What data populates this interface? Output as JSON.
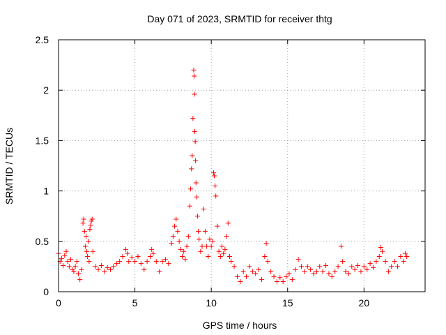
{
  "chart_data": {
    "type": "scatter",
    "title": "Day 071 of 2023, SRMTID for receiver thtg",
    "xlabel": "GPS time / hours",
    "ylabel": "SRMTID / TECUs",
    "xlim": [
      0,
      24
    ],
    "ylim": [
      0,
      2.5
    ],
    "xticks": [
      0,
      5,
      10,
      15,
      20
    ],
    "yticks": [
      0,
      0.5,
      1,
      1.5,
      2,
      2.5
    ],
    "xtick_labels": [
      "0",
      "5",
      "10",
      "15",
      "20"
    ],
    "ytick_labels": [
      "0",
      "0.5",
      "1",
      "1.5",
      "2",
      "2.5"
    ],
    "grid": true,
    "marker": "+",
    "series": [
      {
        "name": "SRMTID",
        "color": "#ff0000",
        "points": [
          [
            0.0,
            0.38
          ],
          [
            0.1,
            0.3
          ],
          [
            0.2,
            0.33
          ],
          [
            0.3,
            0.26
          ],
          [
            0.4,
            0.36
          ],
          [
            0.5,
            0.4
          ],
          [
            0.6,
            0.3
          ],
          [
            0.7,
            0.25
          ],
          [
            0.8,
            0.32
          ],
          [
            0.9,
            0.22
          ],
          [
            1.0,
            0.2
          ],
          [
            1.1,
            0.25
          ],
          [
            1.2,
            0.3
          ],
          [
            1.3,
            0.18
          ],
          [
            1.4,
            0.12
          ],
          [
            1.5,
            0.22
          ],
          [
            1.6,
            0.68
          ],
          [
            1.65,
            0.72
          ],
          [
            1.7,
            0.6
          ],
          [
            1.75,
            0.45
          ],
          [
            1.8,
            0.55
          ],
          [
            1.85,
            0.4
          ],
          [
            1.9,
            0.35
          ],
          [
            1.95,
            0.5
          ],
          [
            2.0,
            0.3
          ],
          [
            2.05,
            0.62
          ],
          [
            2.1,
            0.66
          ],
          [
            2.15,
            0.7
          ],
          [
            2.2,
            0.72
          ],
          [
            2.25,
            0.4
          ],
          [
            2.4,
            0.25
          ],
          [
            2.6,
            0.22
          ],
          [
            2.8,
            0.26
          ],
          [
            3.0,
            0.2
          ],
          [
            3.2,
            0.24
          ],
          [
            3.4,
            0.22
          ],
          [
            3.6,
            0.25
          ],
          [
            3.8,
            0.28
          ],
          [
            4.0,
            0.3
          ],
          [
            4.2,
            0.35
          ],
          [
            4.4,
            0.42
          ],
          [
            4.5,
            0.38
          ],
          [
            4.6,
            0.3
          ],
          [
            4.8,
            0.34
          ],
          [
            5.0,
            0.3
          ],
          [
            5.2,
            0.35
          ],
          [
            5.4,
            0.28
          ],
          [
            5.6,
            0.22
          ],
          [
            5.8,
            0.3
          ],
          [
            6.0,
            0.35
          ],
          [
            6.1,
            0.42
          ],
          [
            6.2,
            0.38
          ],
          [
            6.4,
            0.3
          ],
          [
            6.6,
            0.2
          ],
          [
            6.8,
            0.3
          ],
          [
            7.0,
            0.32
          ],
          [
            7.2,
            0.28
          ],
          [
            7.4,
            0.48
          ],
          [
            7.5,
            0.55
          ],
          [
            7.6,
            0.65
          ],
          [
            7.7,
            0.72
          ],
          [
            7.8,
            0.6
          ],
          [
            7.9,
            0.5
          ],
          [
            8.0,
            0.42
          ],
          [
            8.1,
            0.35
          ],
          [
            8.2,
            0.4
          ],
          [
            8.3,
            0.32
          ],
          [
            8.4,
            0.45
          ],
          [
            8.5,
            0.55
          ],
          [
            8.6,
            0.85
          ],
          [
            8.65,
            1.02
          ],
          [
            8.7,
            1.22
          ],
          [
            8.75,
            1.35
          ],
          [
            8.8,
            1.72
          ],
          [
            8.85,
            2.2
          ],
          [
            8.88,
            2.14
          ],
          [
            8.9,
            1.96
          ],
          [
            8.92,
            1.59
          ],
          [
            8.95,
            1.49
          ],
          [
            8.97,
            1.3
          ],
          [
            9.0,
            1.08
          ],
          [
            9.05,
            0.94
          ],
          [
            9.1,
            0.75
          ],
          [
            9.15,
            0.6
          ],
          [
            9.2,
            0.52
          ],
          [
            9.3,
            0.4
          ],
          [
            9.4,
            0.45
          ],
          [
            9.5,
            0.82
          ],
          [
            9.6,
            0.6
          ],
          [
            9.7,
            0.45
          ],
          [
            9.8,
            0.35
          ],
          [
            9.9,
            0.52
          ],
          [
            10.0,
            0.45
          ],
          [
            10.1,
            0.5
          ],
          [
            10.15,
            1.18
          ],
          [
            10.2,
            1.15
          ],
          [
            10.25,
            1.05
          ],
          [
            10.3,
            0.95
          ],
          [
            10.4,
            0.65
          ],
          [
            10.5,
            0.4
          ],
          [
            10.6,
            0.35
          ],
          [
            10.7,
            0.45
          ],
          [
            10.8,
            0.38
          ],
          [
            10.9,
            0.42
          ],
          [
            11.0,
            0.55
          ],
          [
            11.1,
            0.68
          ],
          [
            11.2,
            0.35
          ],
          [
            11.3,
            0.3
          ],
          [
            11.5,
            0.25
          ],
          [
            11.7,
            0.15
          ],
          [
            11.9,
            0.1
          ],
          [
            12.1,
            0.2
          ],
          [
            12.3,
            0.15
          ],
          [
            12.5,
            0.25
          ],
          [
            12.7,
            0.2
          ],
          [
            12.9,
            0.18
          ],
          [
            13.1,
            0.22
          ],
          [
            13.3,
            0.12
          ],
          [
            13.5,
            0.35
          ],
          [
            13.6,
            0.48
          ],
          [
            13.7,
            0.3
          ],
          [
            13.9,
            0.2
          ],
          [
            14.1,
            0.15
          ],
          [
            14.3,
            0.1
          ],
          [
            14.5,
            0.14
          ],
          [
            14.7,
            0.1
          ],
          [
            14.9,
            0.15
          ],
          [
            15.1,
            0.18
          ],
          [
            15.3,
            0.12
          ],
          [
            15.5,
            0.22
          ],
          [
            15.7,
            0.32
          ],
          [
            15.9,
            0.25
          ],
          [
            16.1,
            0.2
          ],
          [
            16.3,
            0.25
          ],
          [
            16.5,
            0.22
          ],
          [
            16.7,
            0.18
          ],
          [
            16.9,
            0.2
          ],
          [
            17.1,
            0.25
          ],
          [
            17.3,
            0.2
          ],
          [
            17.5,
            0.26
          ],
          [
            17.7,
            0.18
          ],
          [
            17.9,
            0.15
          ],
          [
            18.1,
            0.2
          ],
          [
            18.3,
            0.25
          ],
          [
            18.5,
            0.45
          ],
          [
            18.6,
            0.3
          ],
          [
            18.8,
            0.2
          ],
          [
            19.0,
            0.18
          ],
          [
            19.2,
            0.25
          ],
          [
            19.4,
            0.22
          ],
          [
            19.6,
            0.26
          ],
          [
            19.8,
            0.2
          ],
          [
            20.0,
            0.25
          ],
          [
            20.2,
            0.22
          ],
          [
            20.4,
            0.28
          ],
          [
            20.6,
            0.24
          ],
          [
            20.8,
            0.3
          ],
          [
            21.0,
            0.35
          ],
          [
            21.1,
            0.44
          ],
          [
            21.2,
            0.4
          ],
          [
            21.4,
            0.3
          ],
          [
            21.6,
            0.2
          ],
          [
            21.8,
            0.25
          ],
          [
            22.0,
            0.3
          ],
          [
            22.2,
            0.25
          ],
          [
            22.4,
            0.35
          ],
          [
            22.6,
            0.3
          ],
          [
            22.7,
            0.38
          ],
          [
            22.8,
            0.35
          ]
        ]
      }
    ]
  }
}
